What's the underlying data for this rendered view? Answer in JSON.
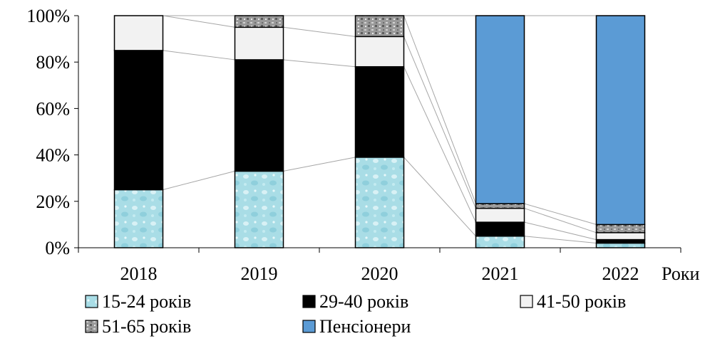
{
  "chart_data": {
    "type": "bar",
    "stacked": true,
    "percent": true,
    "categories": [
      "2018",
      "2019",
      "2020",
      "2021",
      "2022"
    ],
    "xlabel": "Роки",
    "ylabel": "",
    "ylim": [
      0,
      100
    ],
    "y_ticks": [
      "0%",
      "20%",
      "40%",
      "60%",
      "80%",
      "100%"
    ],
    "grid": false,
    "legend_position": "bottom",
    "series_lines": true,
    "series": [
      {
        "name": "15-24 років",
        "values": [
          25,
          33,
          39,
          5,
          2
        ],
        "color": "#a9dde6",
        "pattern": "water-drops"
      },
      {
        "name": "29-40 років",
        "values": [
          60,
          48,
          39,
          6,
          1.5
        ],
        "color": "#000000",
        "pattern": "solid"
      },
      {
        "name": "41-50 років",
        "values": [
          15,
          14,
          13,
          6,
          3
        ],
        "color": "#f2f2f2",
        "pattern": "solid"
      },
      {
        "name": "51-65 років",
        "values": [
          0,
          5,
          9,
          2,
          3.5
        ],
        "color": "#9a9a9a",
        "pattern": "granite"
      },
      {
        "name": "Пенсіонери",
        "values": [
          0,
          0,
          0,
          81,
          90
        ],
        "color": "#5b9bd5",
        "pattern": "solid"
      }
    ]
  }
}
